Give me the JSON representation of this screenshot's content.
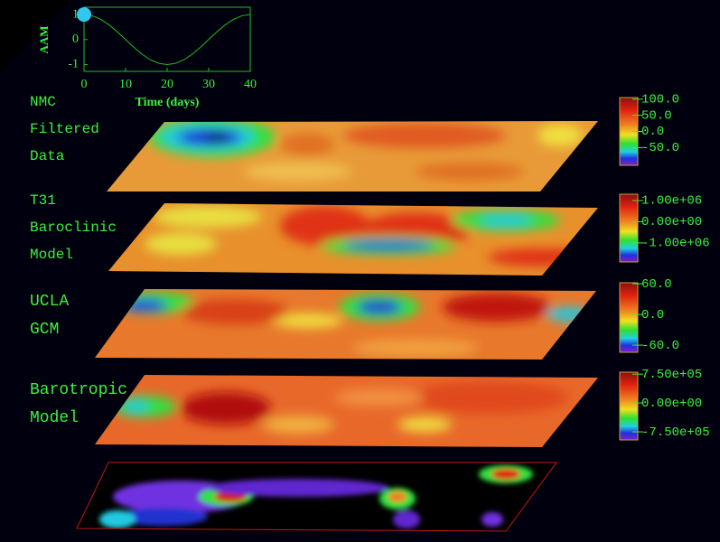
{
  "chart_data": {
    "type": "line",
    "ylabel": "AAM",
    "xlabel": "Time (days)",
    "x": [
      0,
      2,
      4,
      6,
      8,
      10,
      12,
      14,
      16,
      18,
      20,
      22,
      24,
      26,
      28,
      30,
      32,
      34,
      36,
      38,
      40
    ],
    "values": [
      1,
      0.95,
      0.81,
      0.59,
      0.31,
      0,
      -0.31,
      -0.59,
      -0.81,
      -0.95,
      -1,
      -0.95,
      -0.81,
      -0.59,
      -0.31,
      0,
      0.31,
      0.59,
      0.81,
      0.95,
      1
    ],
    "color": "#20c020",
    "marker_color": "#30c8f0",
    "xlim": [
      0,
      40
    ],
    "ylim": [
      -1.27,
      1.29
    ],
    "xticks": [
      0,
      10,
      20,
      30,
      40
    ],
    "yticks": [
      -1,
      0,
      1
    ]
  },
  "panels": [
    {
      "label_lines": [
        "NMC",
        "Filtered",
        "Data"
      ],
      "colorbar": {
        "clim": [
          -105,
          105
        ],
        "ticks": [
          {
            "value": 100,
            "label": "100.0"
          },
          {
            "value": 50,
            "label": "50.0"
          },
          {
            "value": 0,
            "label": "0.0"
          },
          {
            "value": -50,
            "label": "-50.0"
          }
        ]
      }
    },
    {
      "label_lines": [
        "T31",
        "Baroclinic",
        "Model"
      ],
      "colorbar": {
        "clim": [
          -1900000,
          1300000
        ],
        "ticks": [
          {
            "value": 1000000,
            "label": "1.00e+06"
          },
          {
            "value": 0,
            "label": "0.00e+00"
          },
          {
            "value": -1000000,
            "label": "-1.00e+06"
          }
        ]
      }
    },
    {
      "label_lines": [
        "UCLA",
        "GCM"
      ],
      "colorbar": {
        "clim": [
          -74,
          62
        ],
        "ticks": [
          {
            "value": 60,
            "label": "60.0"
          },
          {
            "value": 0,
            "label": "0.0"
          },
          {
            "value": -60,
            "label": "-60.0"
          }
        ]
      }
    },
    {
      "label_lines": [
        "Barotropic",
        "Model"
      ],
      "colorbar": {
        "clim": [
          -960000,
          800000
        ],
        "ticks": [
          {
            "value": 750000,
            "label": "7.50e+05"
          },
          {
            "value": 0,
            "label": "0.00e+00"
          },
          {
            "value": -750000,
            "label": "-7.50e+05"
          }
        ]
      }
    }
  ]
}
